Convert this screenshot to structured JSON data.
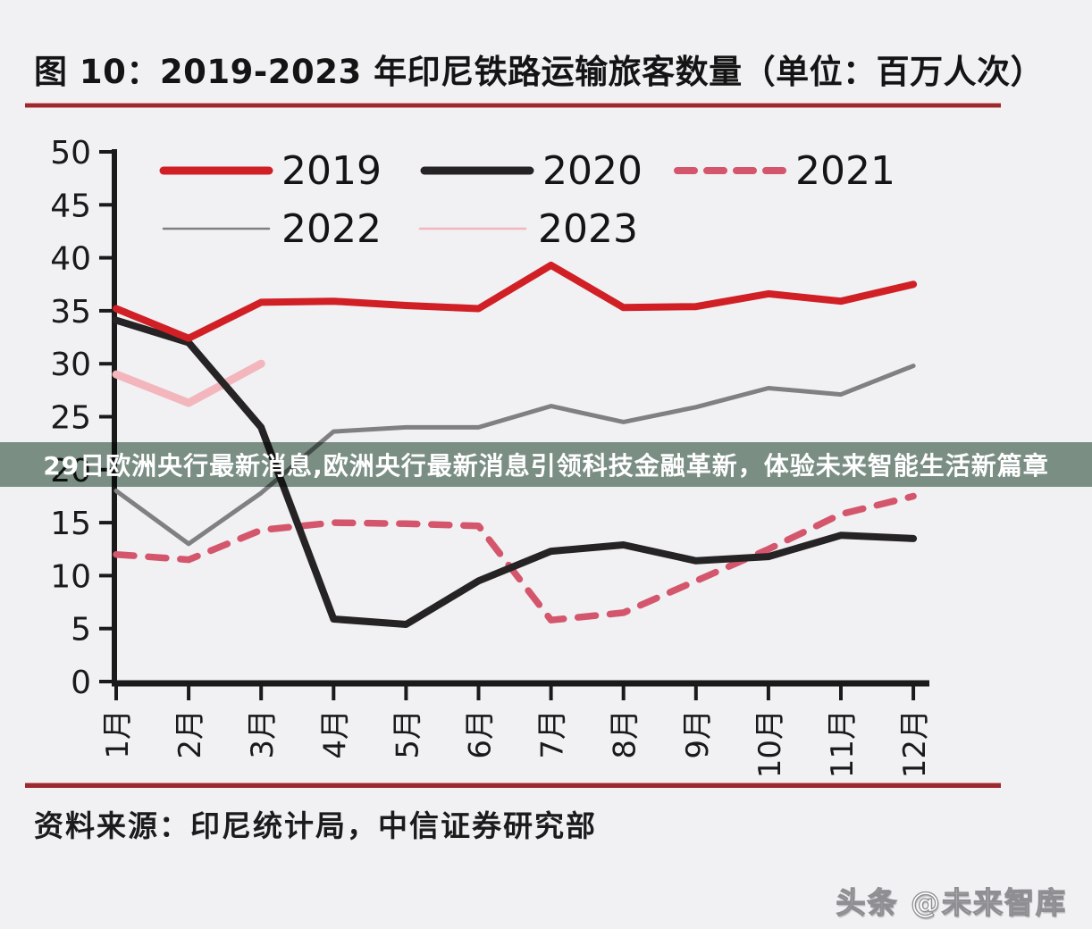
{
  "figure": {
    "title": "图 10：2019-2023 年印尼铁路运输旅客数量（单位：百万人次）",
    "accent_rule_color": "#9a2a2e",
    "source_label": "资料来源：印尼统计局，中信证券研究部"
  },
  "overlay_banner": {
    "text": "29日欧洲央行最新消息,欧洲央行最新消息引领科技金融革新，体验未来智能生活新篇章",
    "background": "#7d9487",
    "text_color": "#ffffff"
  },
  "watermark": {
    "text": "头条 @未来智库"
  },
  "chart_data": {
    "type": "line",
    "title": "图 10：2019-2023 年印尼铁路运输旅客数量（单位：百万人次）",
    "unit": "百万人次",
    "xlabel": "",
    "ylabel": "",
    "grid": false,
    "legend_position": "top-left, two rows",
    "x": [
      1,
      2,
      3,
      4,
      5,
      6,
      7,
      8,
      9,
      10,
      11,
      12
    ],
    "x_tick_labels": [
      "1月",
      "2月",
      "3月",
      "4月",
      "5月",
      "6月",
      "7月",
      "8月",
      "9月",
      "10月",
      "11月",
      "12月"
    ],
    "y_ticks": [
      0,
      5,
      10,
      15,
      20,
      25,
      30,
      35,
      40,
      45,
      50
    ],
    "ylim": [
      0,
      50
    ],
    "axis_color": "#1a1a1a",
    "series": [
      {
        "name": "2019",
        "color": "#d02025",
        "width": 8,
        "dash": null,
        "values": [
          35.2,
          32.4,
          35.8,
          35.9,
          35.5,
          35.2,
          39.3,
          35.3,
          35.4,
          36.6,
          35.9,
          37.5
        ]
      },
      {
        "name": "2020",
        "color": "#262324",
        "width": 8,
        "dash": null,
        "values": [
          34.1,
          32.0,
          24.0,
          5.9,
          5.4,
          9.5,
          12.3,
          12.9,
          11.4,
          11.8,
          13.8,
          13.5
        ]
      },
      {
        "name": "2021",
        "color": "#d4566c",
        "width": 7.5,
        "dash": [
          20,
          16
        ],
        "values": [
          12.0,
          11.5,
          14.3,
          15.0,
          14.9,
          14.7,
          5.8,
          6.5,
          9.5,
          12.5,
          15.8,
          17.5
        ]
      },
      {
        "name": "2022",
        "color": "#808083",
        "width": 5,
        "dash": null,
        "values": [
          18.0,
          13.0,
          17.8,
          23.6,
          24.0,
          24.0,
          26.0,
          24.5,
          25.9,
          27.7,
          27.1,
          29.8
        ]
      },
      {
        "name": "2023",
        "color": "#f2b6bc",
        "width": 9,
        "dash": null,
        "values": [
          29.0,
          26.3,
          30.0
        ]
      }
    ]
  }
}
